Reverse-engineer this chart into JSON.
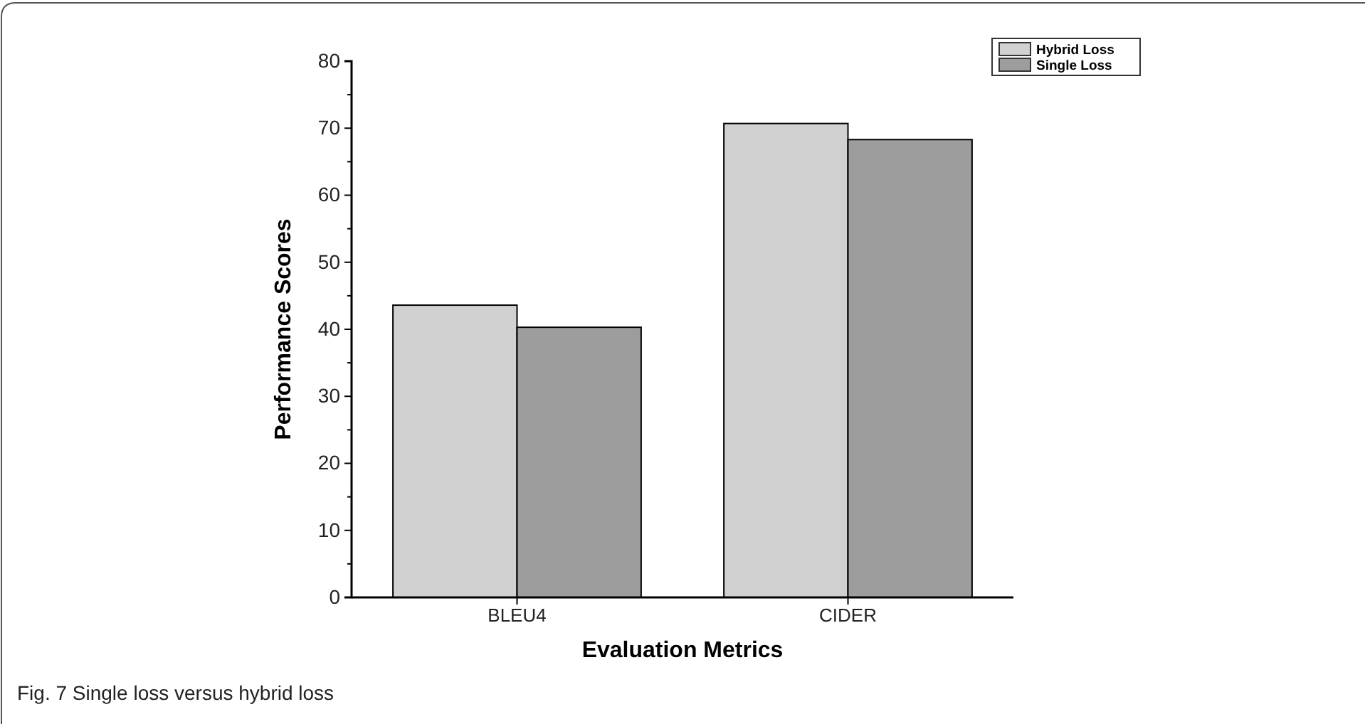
{
  "chart_data": {
    "type": "bar",
    "xlabel": "Evaluation Metrics",
    "ylabel": "Performance Scores",
    "categories": [
      "BLEU4",
      "CIDER"
    ],
    "series": [
      {
        "name": "Hybrid Loss",
        "color": "#d0d1d0",
        "values": [
          43.6,
          70.7
        ]
      },
      {
        "name": "Single Loss",
        "color": "#9c9d9c",
        "values": [
          40.3,
          68.3
        ]
      }
    ],
    "ylim": [
      0,
      80
    ],
    "yticks": [
      0,
      {
        "value": 5,
        "label": null
      },
      10,
      {
        "value": 15,
        "label": null
      },
      20,
      {
        "value": 25,
        "label": null
      },
      30,
      {
        "value": 35,
        "label": null
      },
      40,
      {
        "value": 45,
        "label": null
      },
      50,
      {
        "value": 55,
        "label": null
      },
      60,
      {
        "value": 65,
        "label": null
      },
      70,
      {
        "value": 75,
        "label": null
      },
      80
    ],
    "legend": "top right",
    "grid": false,
    "annotations": [
      "Fig. 7  Single loss versus hybrid loss"
    ]
  }
}
